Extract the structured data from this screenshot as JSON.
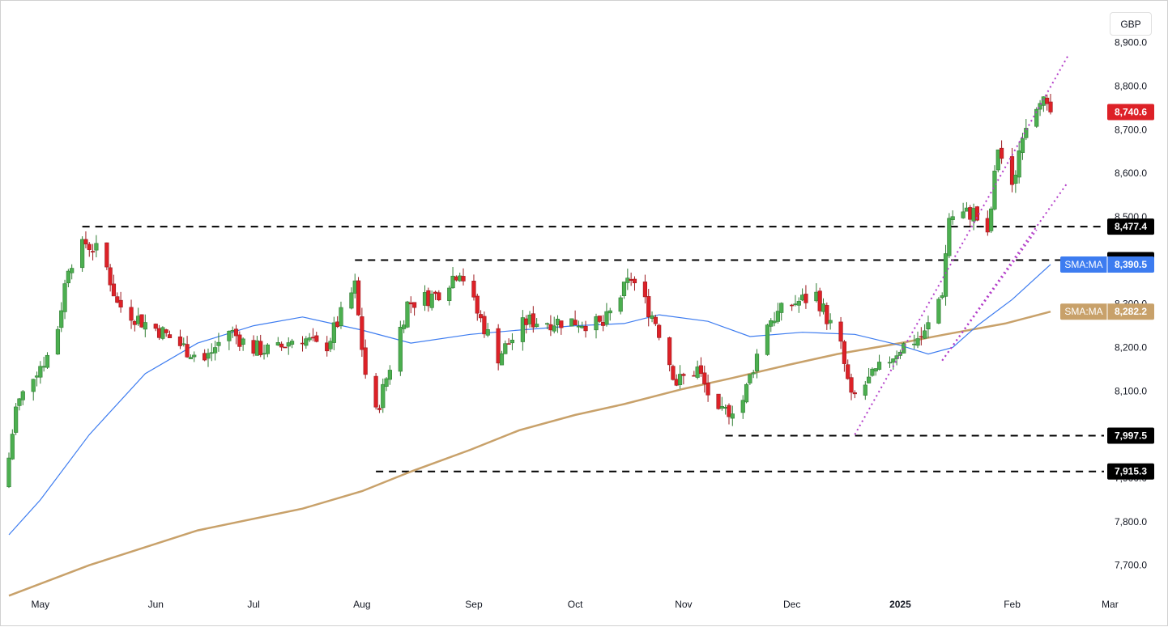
{
  "currency": "GBP",
  "chart_data": {
    "type": "candlestick",
    "y_axis": {
      "range": [
        7640,
        8940
      ],
      "ticks": [
        {
          "value": 8900,
          "label": "8,900.0"
        },
        {
          "value": 8800,
          "label": "8,800.0"
        },
        {
          "value": 8700,
          "label": "8,700.0"
        },
        {
          "value": 8600,
          "label": "8,600.0"
        },
        {
          "value": 8500,
          "label": "8,500.0"
        },
        {
          "value": 8400,
          "label": "8,400.0"
        },
        {
          "value": 8300,
          "label": "8,300.0"
        },
        {
          "value": 8200,
          "label": "8,200.0"
        },
        {
          "value": 8100,
          "label": "8,100.0"
        },
        {
          "value": 8000,
          "label": "8,000.0"
        },
        {
          "value": 7900,
          "label": "7,900.0"
        },
        {
          "value": 7800,
          "label": "7,800.0"
        },
        {
          "value": 7700,
          "label": "7,700.0"
        }
      ]
    },
    "x_axis": {
      "range": [
        "2024-04-22",
        "2025-03-05"
      ],
      "ticks": [
        {
          "date": "2024-05-01",
          "label": "May",
          "bold": false
        },
        {
          "date": "2024-06-03",
          "label": "Jun",
          "bold": false
        },
        {
          "date": "2024-07-01",
          "label": "Jul",
          "bold": false
        },
        {
          "date": "2024-08-01",
          "label": "Aug",
          "bold": false
        },
        {
          "date": "2024-09-02",
          "label": "Sep",
          "bold": false
        },
        {
          "date": "2024-10-01",
          "label": "Oct",
          "bold": false
        },
        {
          "date": "2024-11-01",
          "label": "Nov",
          "bold": false
        },
        {
          "date": "2024-12-02",
          "label": "Dec",
          "bold": false
        },
        {
          "date": "2025-01-02",
          "label": "2025",
          "bold": true
        },
        {
          "date": "2025-02-03",
          "label": "Feb",
          "bold": false
        },
        {
          "date": "2025-03-03",
          "label": "Mar",
          "bold": false
        }
      ]
    },
    "price_path": [
      [
        "2024-04-22",
        7890
      ],
      [
        "2024-04-25",
        8060
      ],
      [
        "2024-04-30",
        8140
      ],
      [
        "2024-05-06",
        8200
      ],
      [
        "2024-05-10",
        8390
      ],
      [
        "2024-05-15",
        8440
      ],
      [
        "2024-05-20",
        8410
      ],
      [
        "2024-05-24",
        8300
      ],
      [
        "2024-05-31",
        8260
      ],
      [
        "2024-06-05",
        8240
      ],
      [
        "2024-06-12",
        8200
      ],
      [
        "2024-06-18",
        8170
      ],
      [
        "2024-06-25",
        8240
      ],
      [
        "2024-07-01",
        8200
      ],
      [
        "2024-07-08",
        8190
      ],
      [
        "2024-07-15",
        8230
      ],
      [
        "2024-07-22",
        8190
      ],
      [
        "2024-07-31",
        8340
      ],
      [
        "2024-08-02",
        8200
      ],
      [
        "2024-08-05",
        8020
      ],
      [
        "2024-08-09",
        8130
      ],
      [
        "2024-08-15",
        8300
      ],
      [
        "2024-08-23",
        8320
      ],
      [
        "2024-08-30",
        8380
      ],
      [
        "2024-09-04",
        8280
      ],
      [
        "2024-09-10",
        8180
      ],
      [
        "2024-09-18",
        8260
      ],
      [
        "2024-09-25",
        8260
      ],
      [
        "2024-10-03",
        8260
      ],
      [
        "2024-10-10",
        8250
      ],
      [
        "2024-10-18",
        8360
      ],
      [
        "2024-10-25",
        8260
      ],
      [
        "2024-10-31",
        8120
      ],
      [
        "2024-11-06",
        8150
      ],
      [
        "2024-11-12",
        8040
      ],
      [
        "2024-11-19",
        8080
      ],
      [
        "2024-11-26",
        8260
      ],
      [
        "2024-12-03",
        8300
      ],
      [
        "2024-12-10",
        8320
      ],
      [
        "2024-12-17",
        8200
      ],
      [
        "2024-12-20",
        8080
      ],
      [
        "2024-12-27",
        8140
      ],
      [
        "2025-01-03",
        8200
      ],
      [
        "2025-01-10",
        8230
      ],
      [
        "2025-01-15",
        8330
      ],
      [
        "2025-01-17",
        8500
      ],
      [
        "2025-01-24",
        8510
      ],
      [
        "2025-01-28",
        8450
      ],
      [
        "2025-01-31",
        8660
      ],
      [
        "2025-02-04",
        8560
      ],
      [
        "2025-02-07",
        8700
      ],
      [
        "2025-02-12",
        8780
      ],
      [
        "2025-02-14",
        8740.6
      ]
    ],
    "last_price": {
      "value": 8740.6,
      "label": "8,740.6",
      "color": "#dd2127"
    },
    "sma_short": {
      "name": "SMA:MA",
      "value_label": "8,390.5",
      "color": "#3d7cf0",
      "points": [
        [
          "2024-04-22",
          7770
        ],
        [
          "2024-05-01",
          7850
        ],
        [
          "2024-05-15",
          8000
        ],
        [
          "2024-05-31",
          8140
        ],
        [
          "2024-06-15",
          8210
        ],
        [
          "2024-07-01",
          8250
        ],
        [
          "2024-07-15",
          8270
        ],
        [
          "2024-08-01",
          8240
        ],
        [
          "2024-08-15",
          8210
        ],
        [
          "2024-09-01",
          8230
        ],
        [
          "2024-09-15",
          8240
        ],
        [
          "2024-10-01",
          8250
        ],
        [
          "2024-10-15",
          8255
        ],
        [
          "2024-10-25",
          8275
        ],
        [
          "2024-11-08",
          8260
        ],
        [
          "2024-11-20",
          8225
        ],
        [
          "2024-12-05",
          8235
        ],
        [
          "2024-12-20",
          8230
        ],
        [
          "2025-01-02",
          8205
        ],
        [
          "2025-01-10",
          8185
        ],
        [
          "2025-01-17",
          8200
        ],
        [
          "2025-01-24",
          8250
        ],
        [
          "2025-02-03",
          8310
        ],
        [
          "2025-02-14",
          8390.5
        ]
      ]
    },
    "sma_long": {
      "name": "SMA:MA",
      "value_label": "8,282.2",
      "color": "#c8a16a",
      "points": [
        [
          "2024-04-22",
          7630
        ],
        [
          "2024-05-15",
          7700
        ],
        [
          "2024-06-15",
          7780
        ],
        [
          "2024-07-15",
          7830
        ],
        [
          "2024-08-01",
          7870
        ],
        [
          "2024-08-15",
          7915
        ],
        [
          "2024-09-01",
          7965
        ],
        [
          "2024-09-15",
          8010
        ],
        [
          "2024-10-01",
          8045
        ],
        [
          "2024-10-15",
          8070
        ],
        [
          "2024-11-01",
          8105
        ],
        [
          "2024-11-15",
          8130
        ],
        [
          "2024-12-01",
          8160
        ],
        [
          "2024-12-15",
          8185
        ],
        [
          "2025-01-02",
          8210
        ],
        [
          "2025-01-15",
          8230
        ],
        [
          "2025-02-01",
          8255
        ],
        [
          "2025-02-14",
          8282.2
        ]
      ]
    },
    "levels": [
      {
        "value": 8477.4,
        "label": "8,477.4",
        "from": "2024-05-13"
      },
      {
        "value": 8400.7,
        "label": "8,400.7",
        "from": "2024-07-30"
      },
      {
        "value": 7997.5,
        "label": "7,997.5",
        "from": "2024-11-13"
      },
      {
        "value": 7915.3,
        "label": "7,915.3",
        "from": "2024-08-05"
      }
    ],
    "trendlines": [
      {
        "from": [
          "2024-12-20",
          8000
        ],
        "to": [
          "2025-02-19",
          8870
        ]
      },
      {
        "from": [
          "2025-01-14",
          8170
        ],
        "to": [
          "2025-02-19",
          8580
        ]
      },
      {
        "from": [
          "2025-01-14",
          8170
        ],
        "to": [
          "2025-02-10",
          8470
        ]
      }
    ],
    "colors": {
      "up": "#22ab94",
      "up_fill": "#4caf50",
      "down": "#f23645",
      "down_fill": "#dd2127",
      "level": "#000000",
      "trend": "#b23bc8",
      "grid": "none"
    }
  }
}
